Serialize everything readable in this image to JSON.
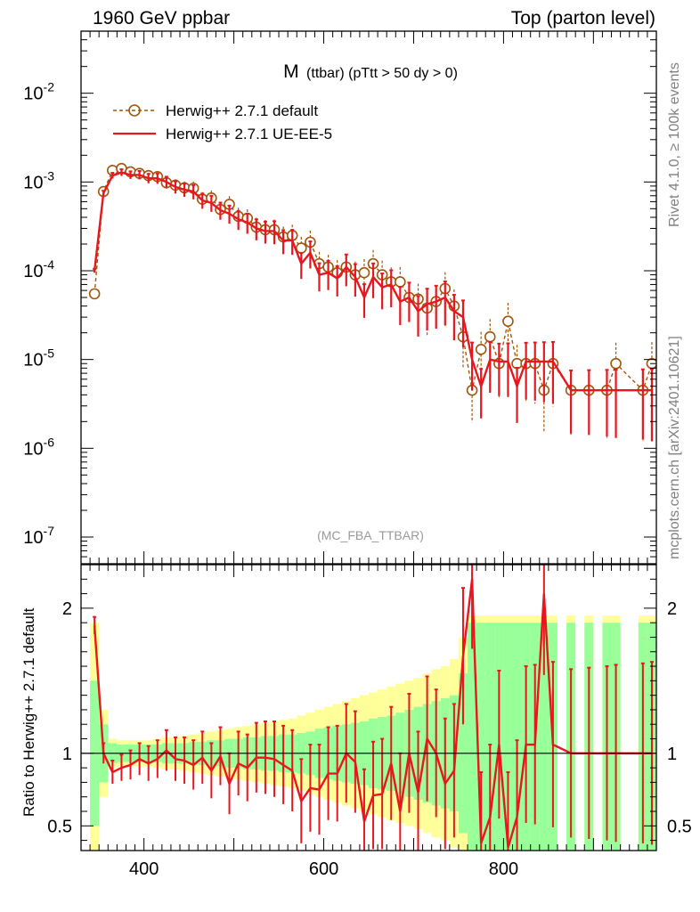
{
  "header": {
    "left": "1960 GeV ppbar",
    "right": "Top (parton level)"
  },
  "side_text": {
    "rivet": "Rivet 4.1.0, ≥ 100k events",
    "mcplots": "mcplots.cern.ch [arXiv:2401.10621]"
  },
  "colors": {
    "default": "#a0560a",
    "ue": "#e8161e",
    "band_yellow": "#ffff99",
    "band_green": "#99ff99"
  },
  "chart_data": [
    {
      "type": "line",
      "title_main": "M",
      "title_sub": "(ttbar) (pTtt > 50 dy > 0)",
      "watermark": "(MC_FBA_TTBAR)",
      "xlabel": "",
      "ylabel": "",
      "yscale": "log",
      "xlim": [
        330,
        970
      ],
      "ylim": [
        5e-08,
        0.05
      ],
      "ytick_labels": [
        {
          "mant": "10",
          "exp": "-7",
          "value": 1e-07
        },
        {
          "mant": "10",
          "exp": "-6",
          "value": 1e-06
        },
        {
          "mant": "10",
          "exp": "-5",
          "value": 1e-05
        },
        {
          "mant": "10",
          "exp": "-4",
          "value": 0.0001
        },
        {
          "mant": "10",
          "exp": "-3",
          "value": 0.001
        },
        {
          "mant": "10",
          "exp": "-2",
          "value": 0.01
        }
      ],
      "legend": [
        "Herwig++ 2.7.1 default",
        "Herwig++ 2.7.1 UE-EE-5"
      ],
      "x": [
        345,
        355,
        365,
        375,
        385,
        395,
        405,
        415,
        425,
        435,
        445,
        455,
        465,
        475,
        485,
        495,
        505,
        515,
        525,
        535,
        545,
        555,
        565,
        575,
        585,
        595,
        605,
        615,
        625,
        635,
        645,
        655,
        665,
        675,
        685,
        695,
        705,
        715,
        725,
        735,
        745,
        755,
        765,
        775,
        785,
        795,
        805,
        815,
        825,
        835,
        845,
        855,
        875,
        895,
        915,
        925,
        955,
        965
      ],
      "series": [
        {
          "name": "Herwig++ 2.7.1 default",
          "values": [
            5.5e-05,
            0.00078,
            0.00135,
            0.00142,
            0.0013,
            0.00125,
            0.00118,
            0.00115,
            0.00098,
            0.00092,
            0.00086,
            0.00085,
            0.00064,
            0.00066,
            0.00049,
            0.00056,
            0.00041,
            0.00039,
            0.00031,
            0.00029,
            0.00029,
            0.00024,
            0.00025,
            0.00018,
            0.00021,
            0.00012,
            0.00011,
            9.5e-05,
            0.00011,
            9e-05,
            9.5e-05,
            0.00012,
            9e-05,
            7.5e-05,
            7.5e-05,
            5e-05,
            4.8e-05,
            3.8e-05,
            4.5e-05,
            6.3e-05,
            4e-05,
            1.8e-05,
            4.5e-06,
            1.3e-05,
            1.8e-05,
            9e-06,
            2.7e-05,
            9e-06,
            9e-06,
            9e-06,
            4.5e-06,
            9e-06,
            4.5e-06,
            4.5e-06,
            4.5e-06,
            9e-06,
            4.5e-06,
            9e-06
          ]
        },
        {
          "name": "Herwig++ 2.7.1 UE-EE-5",
          "values": [
            0.0001,
            0.00075,
            0.00118,
            0.00128,
            0.0012,
            0.0012,
            0.0011,
            0.0011,
            0.001,
            0.00088,
            0.00082,
            0.00078,
            0.00062,
            0.00058,
            0.00048,
            0.00044,
            0.00038,
            0.00035,
            0.0003,
            0.00028,
            0.00028,
            0.00022,
            0.00022,
            0.00012,
            0.00016,
            9e-05,
            9.5e-05,
            8.2e-05,
            0.00011,
            8.5e-05,
            5e-05,
            8.5e-05,
            6.5e-05,
            7e-05,
            4.5e-05,
            5e-05,
            3.5e-05,
            4.2e-05,
            4.5e-05,
            5e-05,
            3.5e-05,
            3e-05,
            1e-05,
            5e-06,
            1e-05,
            9.5e-06,
            9.5e-06,
            5e-06,
            9.5e-06,
            9.5e-06,
            9.5e-06,
            9.5e-06,
            4.5e-06,
            4.5e-06,
            4.5e-06,
            4.5e-06,
            4.5e-06,
            4.5e-06
          ]
        }
      ]
    },
    {
      "type": "line",
      "title": "",
      "xlabel": "",
      "ylabel": "Ratio to Herwig++ 2.7.1 default",
      "xlim": [
        330,
        970
      ],
      "ylim": [
        0.33,
        2.3
      ],
      "x_ticks": [
        400,
        600,
        800
      ],
      "x_tick_labels": [
        "400",
        "600",
        "800"
      ],
      "y_ticks": [
        0.5,
        1,
        2
      ],
      "y_tick_labels": [
        "0.5",
        "1",
        "2"
      ],
      "series": [
        {
          "name": "Herwig++ 2.7.1 UE-EE-5",
          "values": [
            1.88,
            1.0,
            0.87,
            0.9,
            0.92,
            0.96,
            0.93,
            0.96,
            1.02,
            0.96,
            0.95,
            0.92,
            0.97,
            0.88,
            0.98,
            0.79,
            0.93,
            0.9,
            0.97,
            0.97,
            0.96,
            0.92,
            0.88,
            0.67,
            0.76,
            0.75,
            0.86,
            0.86,
            1.0,
            0.94,
            0.53,
            0.71,
            0.72,
            0.93,
            0.6,
            1.0,
            0.73,
            1.1,
            1.0,
            0.79,
            0.88,
            1.67,
            2.2,
            0.38,
            0.56,
            1.06,
            0.35,
            0.56,
            1.06,
            1.06,
            2.1,
            1.06,
            1.0,
            1.0,
            1.0,
            1.0,
            1.0,
            1.0
          ]
        }
      ],
      "band_rel_green": [
        0.5,
        0.2,
        0.07,
        0.06,
        0.06,
        0.06,
        0.06,
        0.06,
        0.07,
        0.07,
        0.07,
        0.08,
        0.08,
        0.09,
        0.09,
        0.1,
        0.1,
        0.11,
        0.11,
        0.12,
        0.12,
        0.13,
        0.13,
        0.14,
        0.15,
        0.17,
        0.18,
        0.19,
        0.2,
        0.21,
        0.22,
        0.24,
        0.25,
        0.26,
        0.28,
        0.3,
        0.32,
        0.34,
        0.36,
        0.38,
        0.4,
        0.55,
        0.9,
        0.9,
        0.9,
        0.9,
        0.9,
        0.9,
        0.9,
        0.9,
        0.9,
        0.9,
        0.9,
        0.9,
        0.9,
        0.9,
        0.9,
        0.9
      ],
      "band_rel_yellow": [
        0.9,
        0.3,
        0.1,
        0.09,
        0.09,
        0.09,
        0.09,
        0.1,
        0.11,
        0.11,
        0.12,
        0.13,
        0.14,
        0.15,
        0.16,
        0.17,
        0.18,
        0.19,
        0.2,
        0.21,
        0.22,
        0.23,
        0.24,
        0.26,
        0.28,
        0.3,
        0.32,
        0.34,
        0.36,
        0.38,
        0.4,
        0.42,
        0.44,
        0.46,
        0.48,
        0.5,
        0.52,
        0.55,
        0.58,
        0.6,
        0.65,
        0.8,
        0.95,
        0.95,
        0.95,
        0.95,
        0.95,
        0.95,
        0.95,
        0.95,
        0.95,
        0.95,
        0.95,
        0.95,
        0.95,
        0.95,
        0.95,
        0.95
      ]
    }
  ]
}
